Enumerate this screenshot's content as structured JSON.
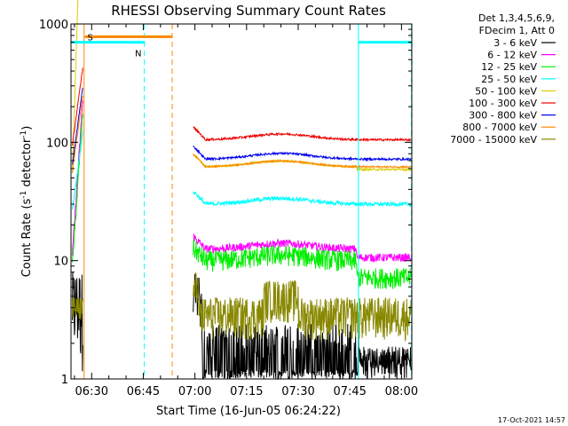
{
  "chart_data": {
    "type": "line",
    "title": "RHESSI Observing Summary Count Rates",
    "xlabel": "Start Time (16-Jun-05 06:24:22)",
    "ylabel": "Count Rate (s⁻¹ detector⁻¹)",
    "ylabel_main": "Count Rate (s",
    "ylabel_sup1": "-1",
    "ylabel_mid": " detector",
    "ylabel_sup2": "-1",
    "ylabel_end": ")",
    "yscale": "log",
    "ylim": [
      1,
      1000
    ],
    "xlim_minutes": [
      -6,
      93
    ],
    "x_ticks": [
      {
        "minute": 0,
        "label": "06:30"
      },
      {
        "minute": 15,
        "label": "06:45"
      },
      {
        "minute": 30,
        "label": "07:00"
      },
      {
        "minute": 45,
        "label": "07:15"
      },
      {
        "minute": 60,
        "label": "07:30"
      },
      {
        "minute": 75,
        "label": "07:45"
      },
      {
        "minute": 90,
        "label": "08:00"
      }
    ],
    "y_ticks": [
      {
        "value": 1,
        "label": "1"
      },
      {
        "value": 10,
        "label": "10"
      },
      {
        "value": 100,
        "label": "100"
      },
      {
        "value": 1000,
        "label": "1000"
      }
    ],
    "legend_header": [
      "Det 1,3,4,5,6,9,",
      "FDecim 1, Att 0"
    ],
    "series": [
      {
        "name": "3 - 6 keV",
        "color": "#000000",
        "base": 1.5,
        "noise": 0.35
      },
      {
        "name": "6 - 12 keV",
        "color": "#ff00ff",
        "base": 12.5,
        "noise": 0.08
      },
      {
        "name": "12 - 25 keV",
        "color": "#00ee00",
        "base": 10,
        "noise": 0.1
      },
      {
        "name": "25 - 50 keV",
        "color": "#00ffff",
        "base": 30,
        "noise": 0.04
      },
      {
        "name": "50 - 100 keV",
        "color": "#ddcc00",
        "base": 62,
        "noise": 0.02
      },
      {
        "name": "100 - 300 keV",
        "color": "#ee0000",
        "base": 105,
        "noise": 0.02
      },
      {
        "name": "300 - 800 keV",
        "color": "#0000ee",
        "base": 72,
        "noise": 0.02
      },
      {
        "name": "800 - 7000 keV",
        "color": "#ff8800",
        "base": 62,
        "noise": 0.015
      },
      {
        "name": "7000 - 15000 keV",
        "color": "#888800",
        "base": 3.5,
        "noise": 0.15
      }
    ],
    "flags": [
      {
        "label": "S",
        "color": "#ff8800",
        "start_minute": -2,
        "end_minute": 23.5,
        "level": 780
      },
      {
        "label": "N",
        "color": "#00ffff",
        "start_minute": -6,
        "end_minute": 15.5,
        "level": 700
      },
      {
        "label": "",
        "color": "#00ffff",
        "start_minute": 77.5,
        "end_minute": 93,
        "level": 700
      }
    ],
    "vertical_lines": [
      {
        "minute": -2.2,
        "color": "#ff8800",
        "style": "solid"
      },
      {
        "minute": 15.3,
        "color": "#00ffff",
        "style": "dashed"
      },
      {
        "minute": 23.4,
        "color": "#ff8800",
        "style": "dashed"
      },
      {
        "minute": 77.5,
        "color": "#00ffff",
        "style": "solid"
      },
      {
        "minute": 92.9,
        "color": "#00ffff",
        "style": "dashed"
      }
    ],
    "timestamp": "17-Oct-2021 14:57"
  }
}
